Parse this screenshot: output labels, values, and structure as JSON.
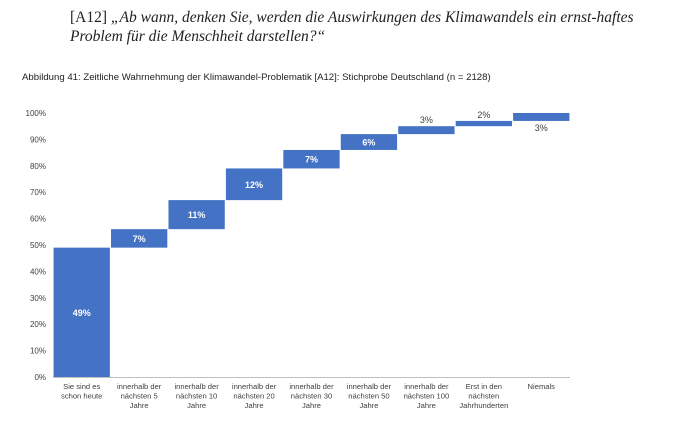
{
  "question": {
    "id": "[A12]",
    "text": "„Ab wann, denken Sie, werden die Auswirkungen des Klimawandels ein ernst-haftes Problem für die Menschheit darstellen?“"
  },
  "figure_title": "Abbildung 41: Zeitliche Wahrnehmung der Klimawandel-Problematik [A12]: Stichprobe Deutschland (n = 2128)",
  "colors": {
    "bar": "#4472C4",
    "axis": "#bfbfbf",
    "text": "#404040"
  },
  "chart_data": {
    "type": "bar",
    "subtype": "waterfall",
    "title": "Abbildung 41: Zeitliche Wahrnehmung der Klimawandel-Problematik [A12]: Stichprobe Deutschland (n = 2128)",
    "categories": [
      [
        "Sie sind es",
        "schon heute"
      ],
      [
        "innerhalb der",
        "nächsten 5",
        "Jahre"
      ],
      [
        "innerhalb der",
        "nächsten 10",
        "Jahre"
      ],
      [
        "innerhalb der",
        "nächsten 20",
        "Jahre"
      ],
      [
        "innerhalb der",
        "nächsten 30",
        "Jahre"
      ],
      [
        "innerhalb der",
        "nächsten 50",
        "Jahre"
      ],
      [
        "innerhalb der",
        "nächsten 100",
        "Jahre"
      ],
      [
        "Erst in den",
        "nächsten",
        "Jahrhunderten"
      ],
      [
        "Niemals"
      ]
    ],
    "values": [
      49,
      7,
      11,
      12,
      7,
      6,
      3,
      2,
      3
    ],
    "labels": [
      "49%",
      "7%",
      "11%",
      "12%",
      "7%",
      "6%",
      "3%",
      "2%",
      "3%"
    ],
    "label_placement": [
      "inside",
      "inside",
      "inside",
      "inside",
      "inside",
      "inside",
      "above",
      "above",
      "below"
    ],
    "ylim": [
      0,
      100
    ],
    "yticks": [
      "0%",
      "10%",
      "20%",
      "30%",
      "40%",
      "50%",
      "60%",
      "70%",
      "80%",
      "90%",
      "100%"
    ],
    "grid": false,
    "legend": "none"
  }
}
